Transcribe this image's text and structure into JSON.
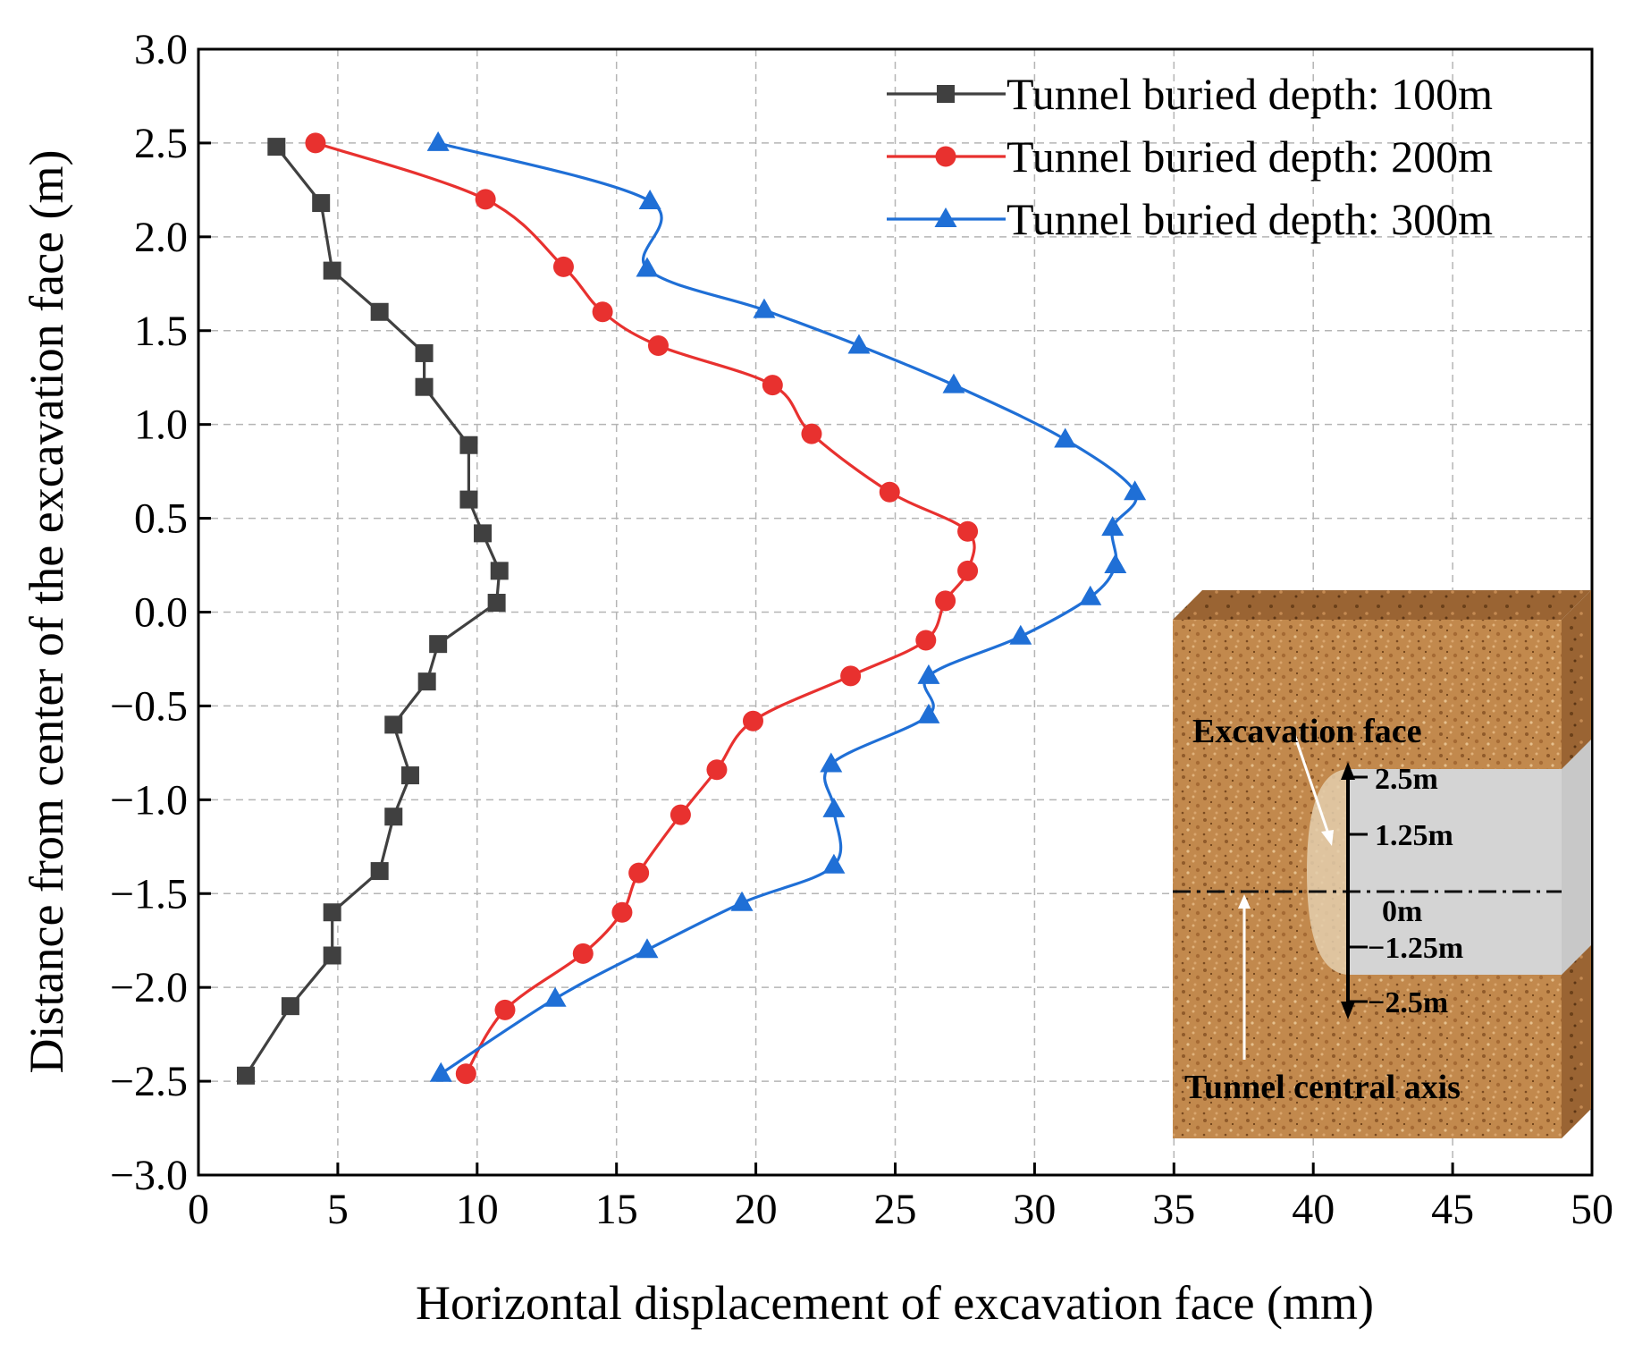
{
  "chart_data": {
    "type": "line",
    "xlabel": "Horizontal displacement of excavation face (mm)",
    "ylabel": "Distance from center of the excavation face (m)",
    "xlim": [
      0,
      50
    ],
    "ylim": [
      -3.0,
      3.0
    ],
    "x_ticks": [
      "0",
      "5",
      "10",
      "15",
      "20",
      "25",
      "30",
      "35",
      "40",
      "45",
      "50"
    ],
    "y_ticks": [
      "−3.0",
      "−2.5",
      "−2.0",
      "−1.5",
      "−1.0",
      "−0.5",
      "0.0",
      "0.5",
      "1.0",
      "1.5",
      "2.0",
      "2.5",
      "3.0"
    ],
    "grid": true,
    "legend_position": "top-right",
    "series": [
      {
        "name": "Tunnel buried depth: 100m",
        "color": "#404040",
        "marker": "square",
        "points": [
          [
            2.8,
            2.48
          ],
          [
            4.4,
            2.18
          ],
          [
            4.8,
            1.82
          ],
          [
            6.5,
            1.6
          ],
          [
            8.1,
            1.38
          ],
          [
            8.1,
            1.2
          ],
          [
            9.7,
            0.89
          ],
          [
            9.7,
            0.6
          ],
          [
            10.2,
            0.42
          ],
          [
            10.8,
            0.22
          ],
          [
            10.7,
            0.05
          ],
          [
            8.6,
            -0.17
          ],
          [
            8.2,
            -0.37
          ],
          [
            7.0,
            -0.6
          ],
          [
            7.6,
            -0.87
          ],
          [
            7.0,
            -1.09
          ],
          [
            6.5,
            -1.38
          ],
          [
            4.8,
            -1.6
          ],
          [
            4.8,
            -1.83
          ],
          [
            3.3,
            -2.1
          ],
          [
            1.7,
            -2.47
          ]
        ]
      },
      {
        "name": "Tunnel buried depth: 200m",
        "color": "#e8312f",
        "marker": "circle",
        "points": [
          [
            4.2,
            2.5
          ],
          [
            10.3,
            2.2
          ],
          [
            13.1,
            1.84
          ],
          [
            14.5,
            1.6
          ],
          [
            16.5,
            1.42
          ],
          [
            20.6,
            1.21
          ],
          [
            22.0,
            0.95
          ],
          [
            24.8,
            0.64
          ],
          [
            27.6,
            0.43
          ],
          [
            27.6,
            0.22
          ],
          [
            26.8,
            0.06
          ],
          [
            26.1,
            -0.15
          ],
          [
            23.4,
            -0.34
          ],
          [
            19.9,
            -0.58
          ],
          [
            18.6,
            -0.84
          ],
          [
            17.3,
            -1.08
          ],
          [
            15.8,
            -1.39
          ],
          [
            15.2,
            -1.6
          ],
          [
            13.8,
            -1.82
          ],
          [
            11.0,
            -2.12
          ],
          [
            9.6,
            -2.46
          ]
        ]
      },
      {
        "name": "Tunnel buried depth: 300m",
        "color": "#1f6fd6",
        "marker": "triangle",
        "points": [
          [
            8.6,
            2.5
          ],
          [
            16.2,
            2.19
          ],
          [
            16.1,
            1.83
          ],
          [
            20.3,
            1.61
          ],
          [
            23.7,
            1.42
          ],
          [
            27.1,
            1.21
          ],
          [
            31.1,
            0.92
          ],
          [
            33.6,
            0.64
          ],
          [
            32.8,
            0.45
          ],
          [
            32.9,
            0.25
          ],
          [
            32.0,
            0.08
          ],
          [
            29.5,
            -0.13
          ],
          [
            26.2,
            -0.34
          ],
          [
            26.2,
            -0.55
          ],
          [
            22.7,
            -0.81
          ],
          [
            22.8,
            -1.05
          ],
          [
            22.8,
            -1.35
          ],
          [
            19.5,
            -1.55
          ],
          [
            16.1,
            -1.8
          ],
          [
            12.8,
            -2.06
          ],
          [
            8.7,
            -2.46
          ]
        ]
      }
    ],
    "inset": {
      "excavation_face_label": "Excavation face",
      "axis_label": "Tunnel central axis",
      "ticks": [
        "2.5m",
        "1.25m",
        "0m",
        "−1.25m",
        "−2.5m"
      ]
    }
  }
}
